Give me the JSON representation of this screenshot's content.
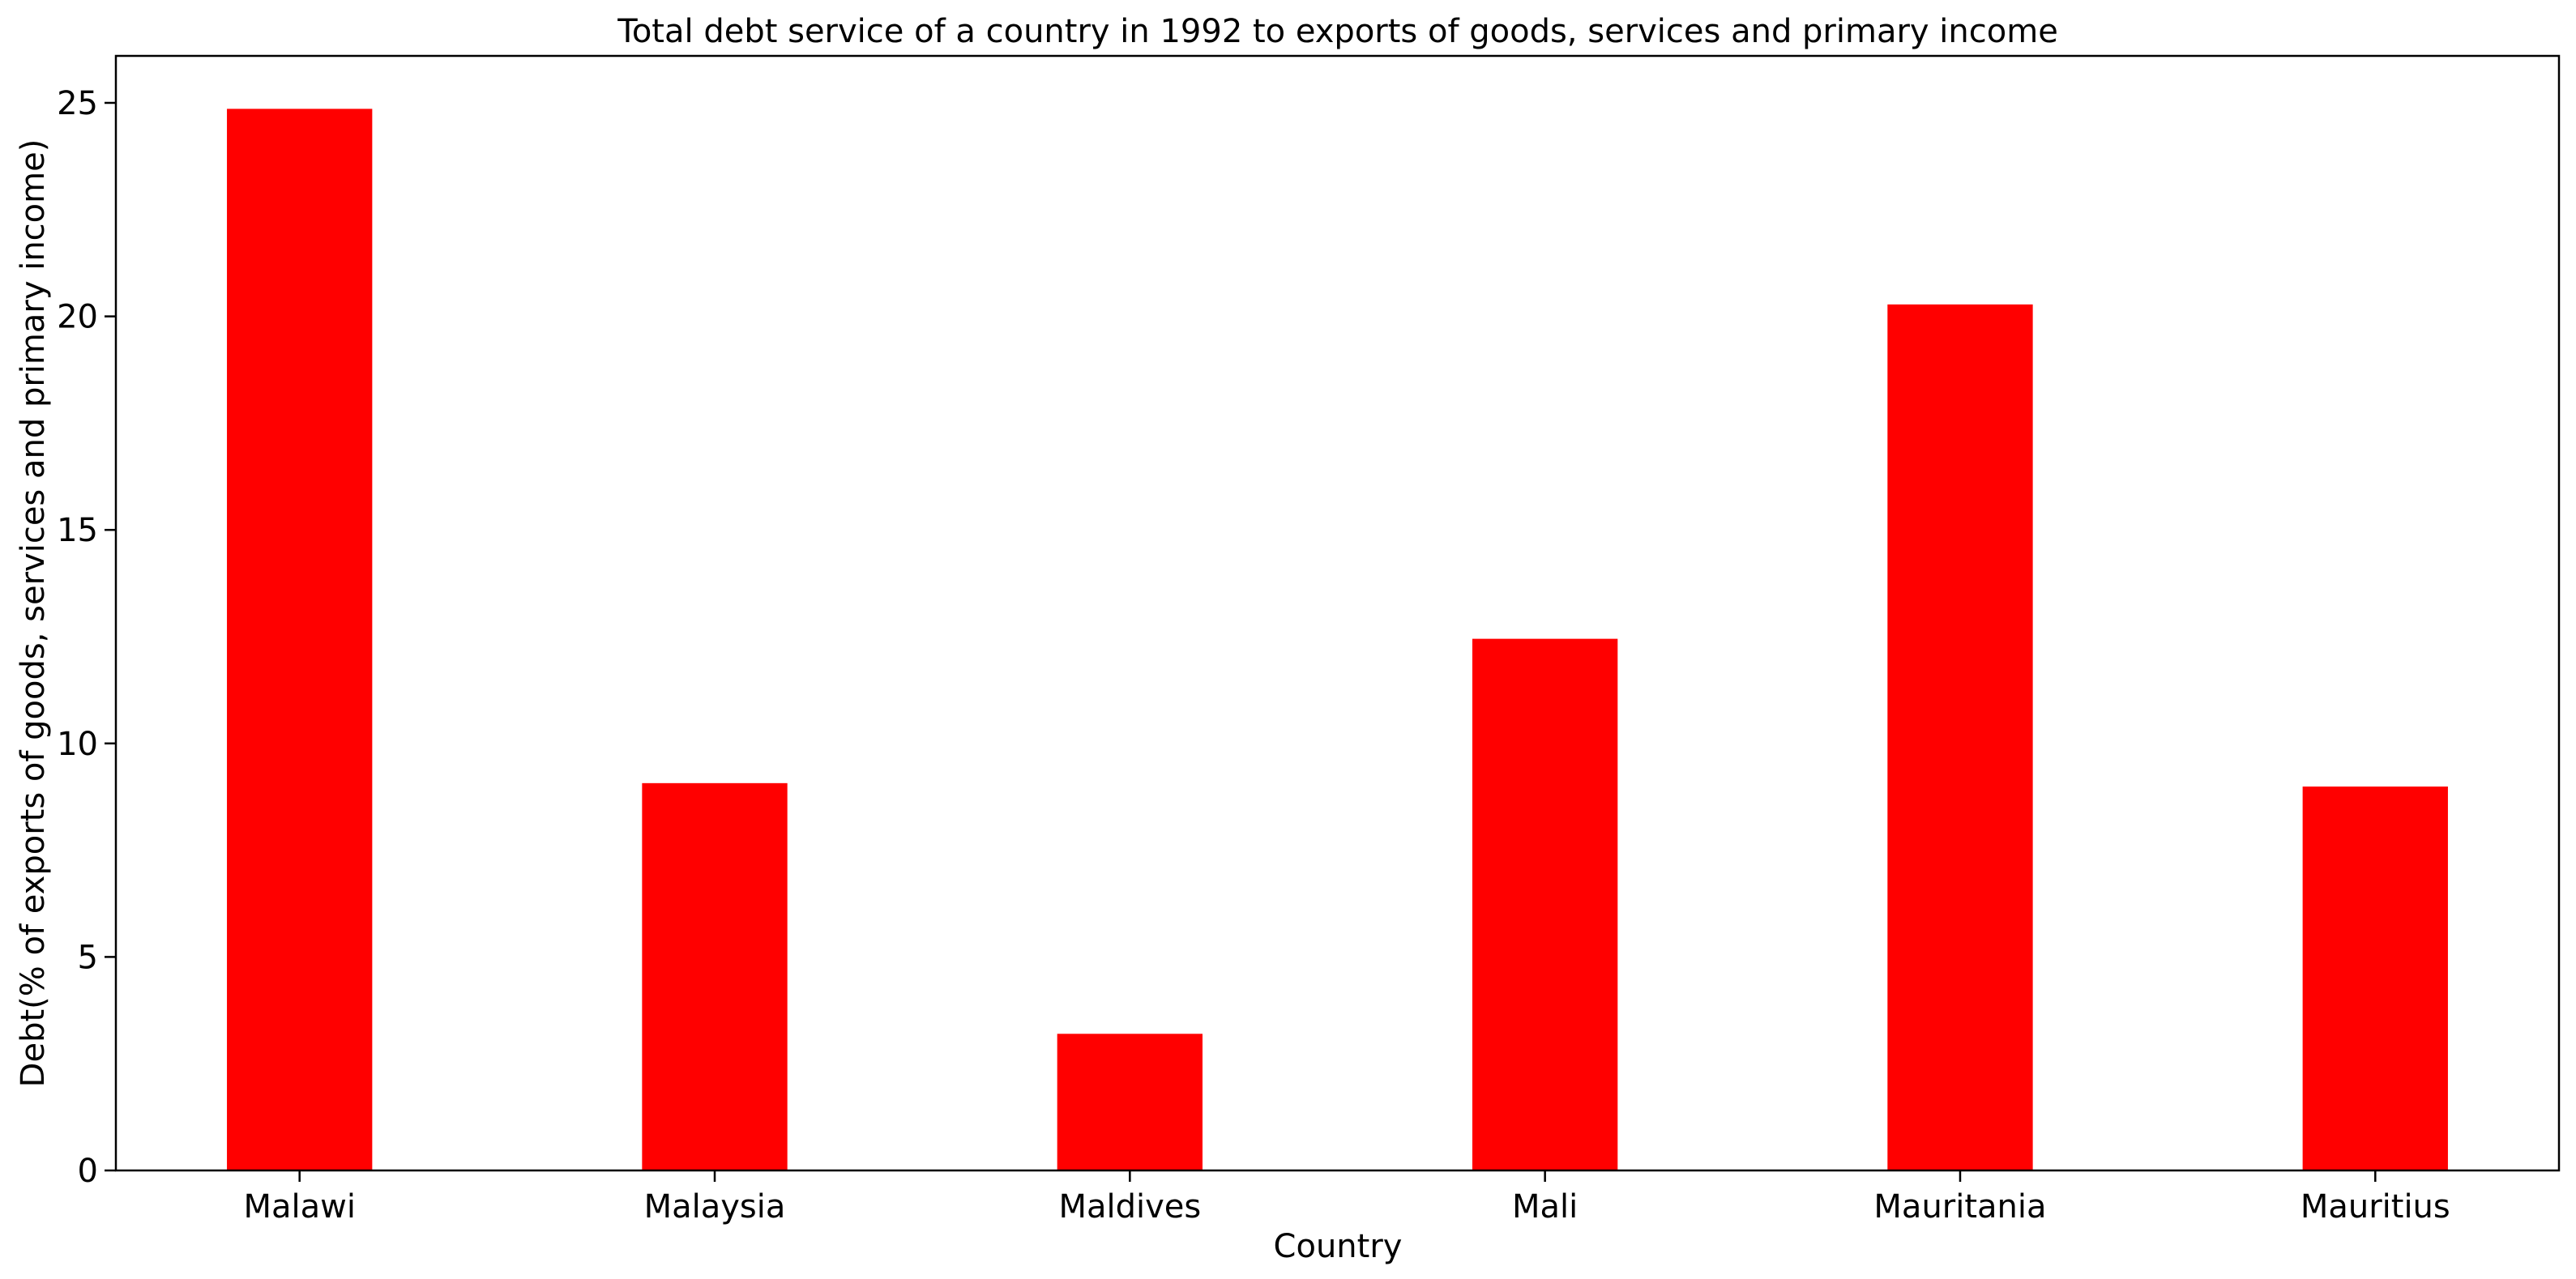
{
  "chart_data": {
    "type": "bar",
    "title": "Total debt service of a country in 1992 to exports of goods, services and primary income",
    "xlabel": "Country",
    "ylabel": "Debt(% of exports of goods, services and primary income)",
    "categories": [
      "Malawi",
      "Malaysia",
      "Maldives",
      "Mali",
      "Mauritania",
      "Mauritius"
    ],
    "values": [
      24.86,
      9.07,
      3.2,
      12.45,
      20.28,
      8.99
    ],
    "ylim": [
      0,
      26.1
    ],
    "yticks": [
      0,
      5,
      10,
      15,
      20,
      25
    ],
    "bar_color": "#ff0000",
    "grid": false,
    "legend": false
  }
}
